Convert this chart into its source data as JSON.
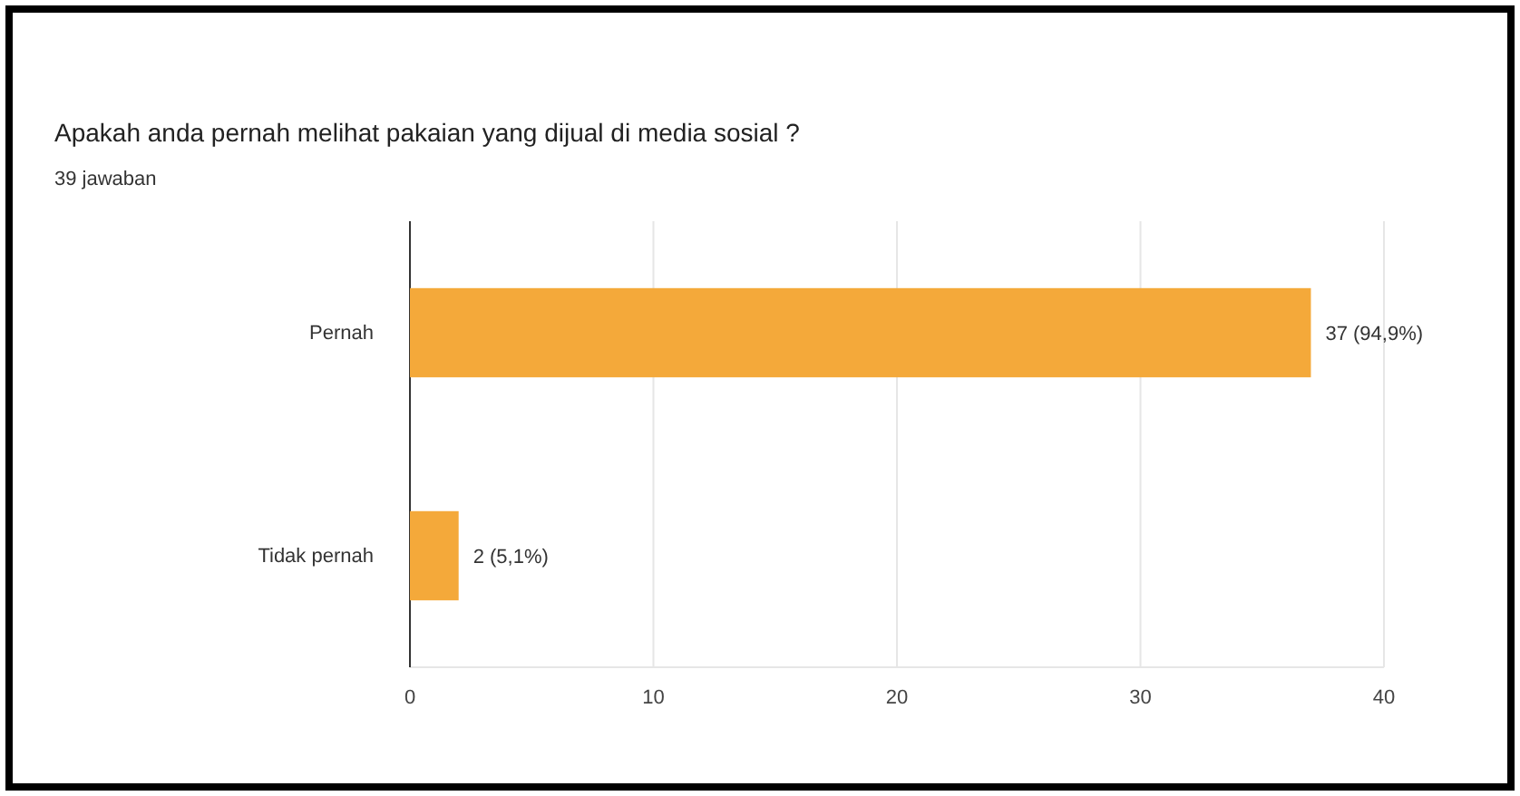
{
  "chart_data": {
    "type": "bar",
    "orientation": "horizontal",
    "title": "Apakah anda pernah melihat pakaian yang dijual di media sosial ?",
    "subtitle": "39 jawaban",
    "categories": [
      "Pernah",
      "Tidak pernah"
    ],
    "values": [
      37,
      2
    ],
    "color": "#f4a93a",
    "value_labels": [
      "37 (94,9%)",
      "2 (5,1%)"
    ],
    "xlim": [
      0,
      40
    ],
    "xticks": [
      0,
      10,
      20,
      30,
      40
    ],
    "grid": "x"
  }
}
